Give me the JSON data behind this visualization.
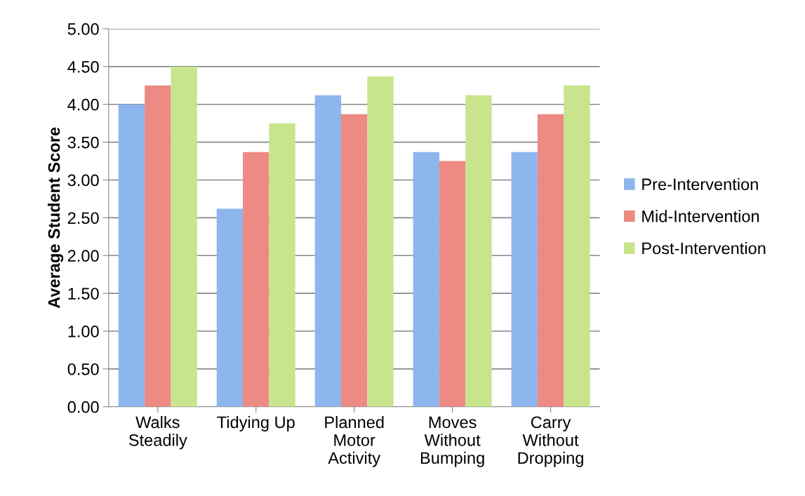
{
  "chart_data": {
    "type": "bar",
    "ylabel": "Average Student Score",
    "categories": [
      "Walks\nSteadily",
      "Tidying Up",
      "Planned\nMotor\nActivity",
      "Moves\nWithout\nBumping",
      "Carry\nWithout\nDropping"
    ],
    "series": [
      {
        "name": "Pre-Intervention",
        "color": "#8db5ee",
        "values": [
          4.0,
          2.62,
          4.12,
          3.37,
          3.37
        ]
      },
      {
        "name": "Mid-Intervention",
        "color": "#ec8a83",
        "values": [
          4.25,
          3.37,
          3.87,
          3.25,
          3.87
        ]
      },
      {
        "name": "Post-Intervention",
        "color": "#c8e48c",
        "values": [
          4.5,
          3.75,
          4.37,
          4.12,
          4.25
        ]
      }
    ],
    "ylim": [
      0,
      5
    ],
    "yticks": [
      {
        "value": 0,
        "label": "0.00"
      },
      {
        "value": 0.5,
        "label": "0.50"
      },
      {
        "value": 1,
        "label": "1.00"
      },
      {
        "value": 1.5,
        "label": "1.50"
      },
      {
        "value": 2,
        "label": "2.00"
      },
      {
        "value": 2.5,
        "label": "2.50"
      },
      {
        "value": 3,
        "label": "3.00"
      },
      {
        "value": 3.5,
        "label": "3.50"
      },
      {
        "value": 4,
        "label": "4.00"
      },
      {
        "value": 4.5,
        "label": "4.50"
      },
      {
        "value": 5,
        "label": "5.00"
      }
    ],
    "grid": "y",
    "legend": "right"
  }
}
